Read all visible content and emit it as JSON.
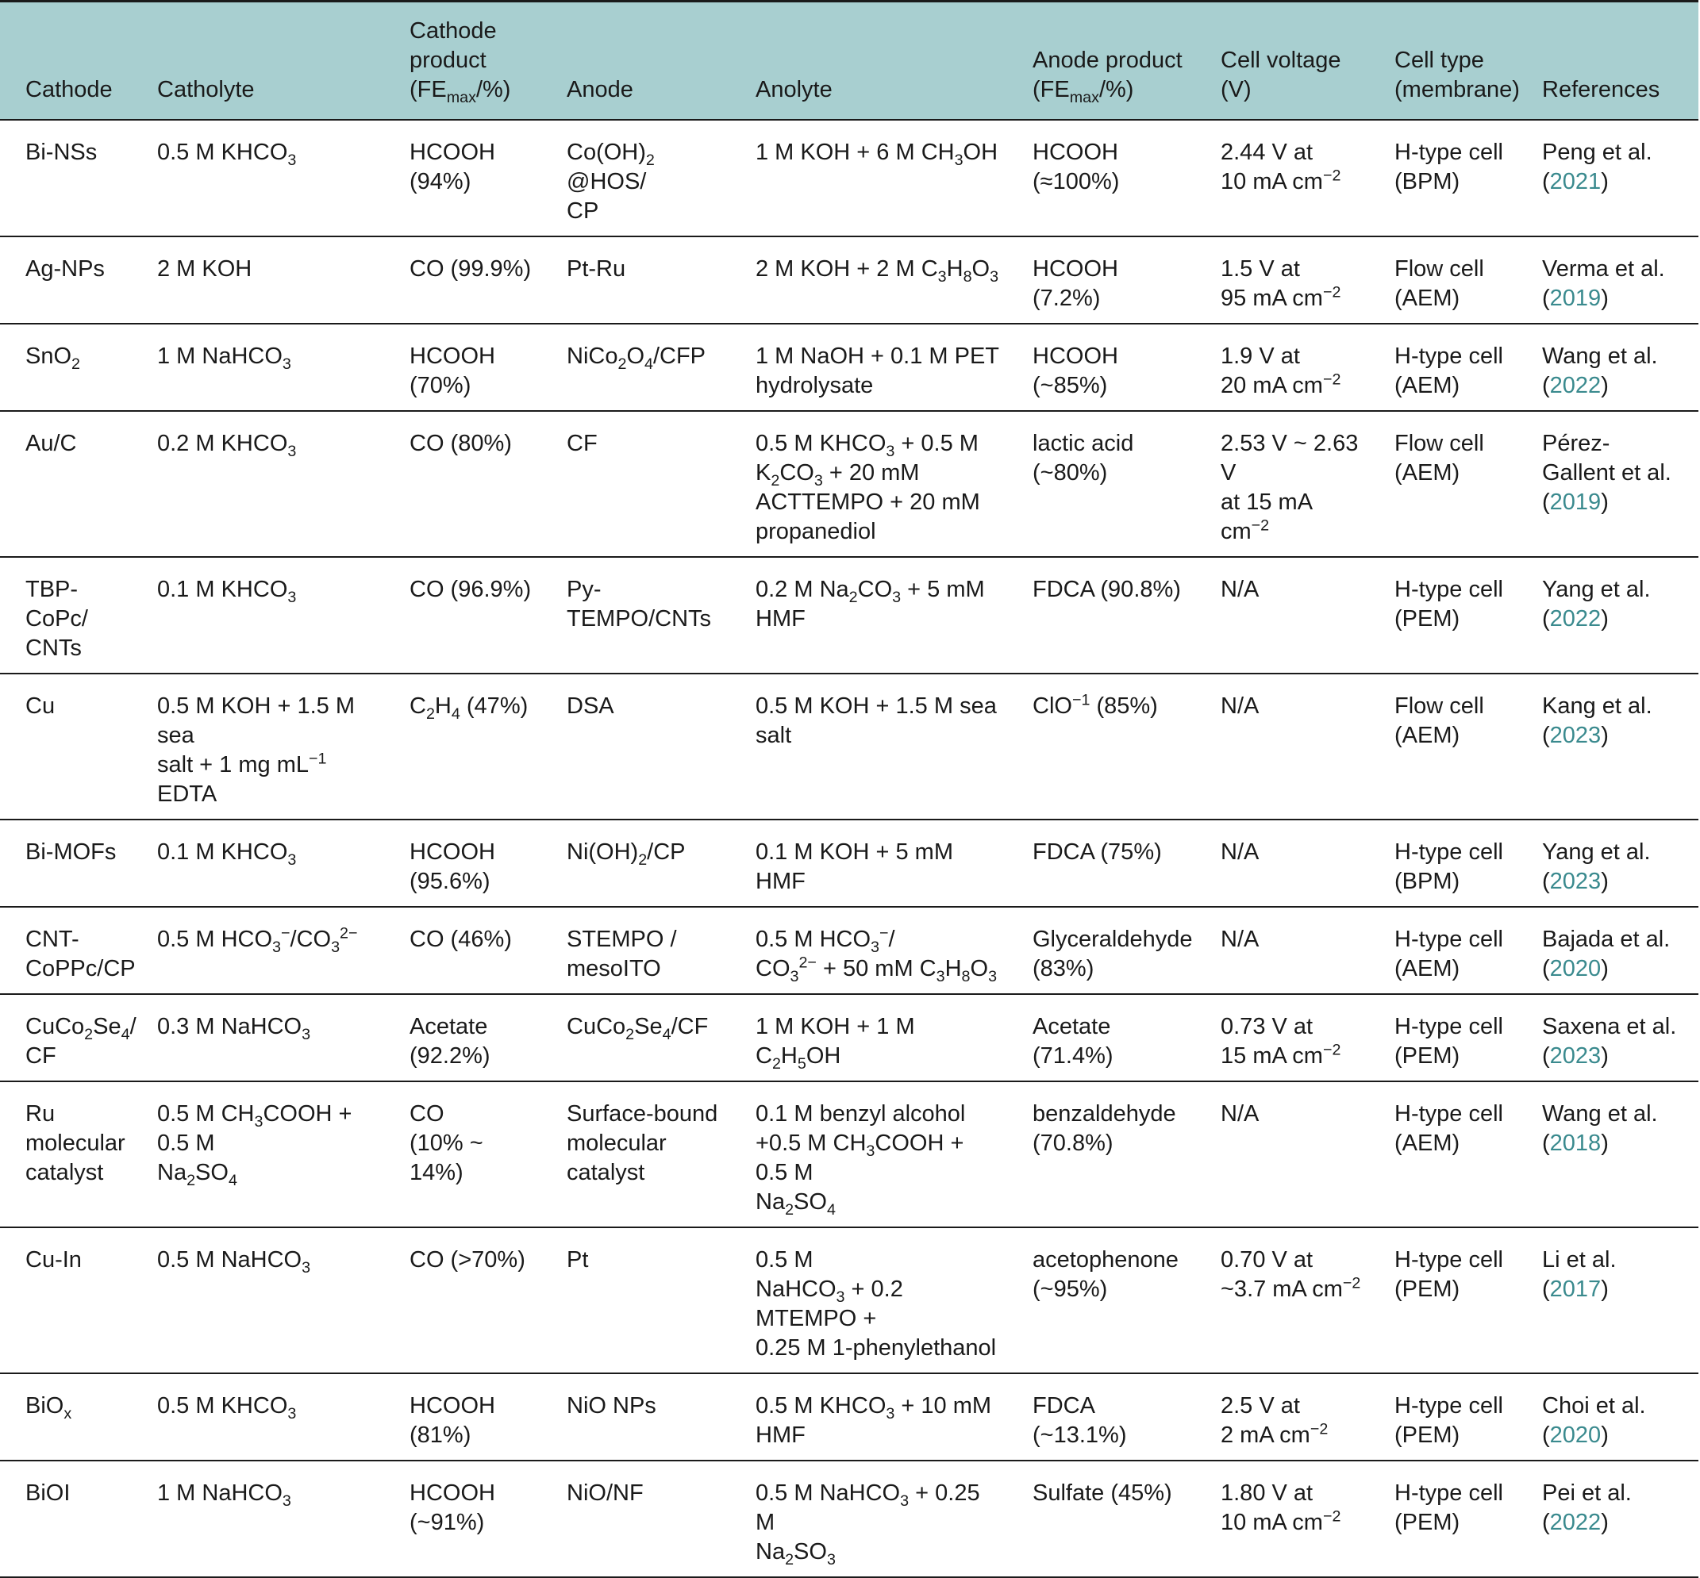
{
  "headers": {
    "cathode": "Cathode",
    "catholyte": "Catholyte",
    "cathode_product": {
      "line1": "Cathode",
      "line2": "product",
      "fe": "FE",
      "max": "max",
      "unit": "/%)"
    },
    "anode": "Anode",
    "anolyte": "Anolyte",
    "anode_product": {
      "line1": "Anode product",
      "fe": "FE",
      "max": "max",
      "unit": "/%)"
    },
    "cell_voltage": "Cell voltage (V)",
    "cell_type": {
      "line1": "Cell type",
      "line2": "(membrane)"
    },
    "references": "References"
  },
  "rows": [
    {
      "cathode": "Bi-NSs",
      "catholyte": "0.5 M KHCO<sub>3</sub>",
      "cathode_product": "HCOOH<br>(94%)",
      "anode": "Co(OH)<sub>2</sub> @HOS/<br>CP",
      "anolyte": "1 M KOH + 6 M CH<sub>3</sub>OH",
      "anode_product": "HCOOH (≈100%)",
      "cell_voltage": "2.44 V at<br>10 mA cm<sup>−2</sup>",
      "cell_type": "H-type cell<br>(BPM)",
      "ref_author": "Peng et al.",
      "ref_year": "2021"
    },
    {
      "cathode": "Ag-NPs",
      "catholyte": "2 M KOH",
      "cathode_product": "CO (99.9%)",
      "anode": "Pt-Ru",
      "anolyte": "2 M KOH + 2 M C<sub>3</sub>H<sub>8</sub>O<sub>3</sub>",
      "anode_product": "HCOOH (7.2%)",
      "cell_voltage": "1.5 V at<br>95 mA cm<sup>−2</sup>",
      "cell_type": "Flow cell<br>(AEM)",
      "ref_author": "Verma et al.",
      "ref_year": "2019"
    },
    {
      "cathode": "SnO<sub>2</sub>",
      "catholyte": "1 M NaHCO<sub>3</sub>",
      "cathode_product": "HCOOH<br>(70%)",
      "anode": "NiCo<sub>2</sub>O<sub>4</sub>/CFP",
      "anolyte": "1 M NaOH + 0.1 M PET<br>hydrolysate",
      "anode_product": "HCOOH (~85%)",
      "cell_voltage": "1.9 V at<br>20 mA cm<sup>−2</sup>",
      "cell_type": "H-type cell<br>(AEM)",
      "ref_author": "Wang et al.",
      "ref_year": "2022"
    },
    {
      "cathode": "Au/C",
      "catholyte": "0.2 M KHCO<sub>3</sub>",
      "cathode_product": "CO (80%)",
      "anode": "CF",
      "anolyte": "0.5 M KHCO<sub>3</sub> + 0.5 M<br>K<sub>2</sub>CO<sub>3</sub> + 20 mM<br>ACTTEMPO + 20 mM<br>propanediol",
      "anode_product": "lactic acid<br>(~80%)",
      "cell_voltage": "2.53 V ~ 2.63 V<br>at 15 mA cm<sup>−2</sup>",
      "cell_type": "Flow cell<br>(AEM)",
      "ref_author": "Pérez-<br>Gallent et al.",
      "ref_year": "2019"
    },
    {
      "cathode": "TBP-CoPc/<br>CNTs",
      "catholyte": "0.1 M KHCO<sub>3</sub>",
      "cathode_product": "CO (96.9%)",
      "anode": "Py-TEMPO/CNTs",
      "anolyte": "0.2 M Na<sub>2</sub>CO<sub>3</sub> + 5 mM HMF",
      "anode_product": "FDCA (90.8%)",
      "cell_voltage": "N/A",
      "cell_type": "H-type cell<br>(PEM)",
      "ref_author": "Yang et al.",
      "ref_year": "2022"
    },
    {
      "cathode": "Cu",
      "catholyte": "0.5 M KOH + 1.5 M sea<br>salt + 1 mg mL<sup>−1</sup> EDTA",
      "cathode_product": "C<sub>2</sub>H<sub>4</sub> (47%)",
      "anode": "DSA",
      "anolyte": "0.5 M KOH + 1.5 M sea salt",
      "anode_product": "ClO<sup>−1</sup> (85%)",
      "cell_voltage": "N/A",
      "cell_type": "Flow cell<br>(AEM)",
      "ref_author": "Kang et al.",
      "ref_year": "2023"
    },
    {
      "cathode": "Bi-MOFs",
      "catholyte": "0.1 M KHCO<sub>3</sub>",
      "cathode_product": "HCOOH<br>(95.6%)",
      "anode": "Ni(OH)<sub>2</sub>/CP",
      "anolyte": "0.1 M KOH + 5 mM HMF",
      "anode_product": "FDCA (75%)",
      "cell_voltage": "N/A",
      "cell_type": "H-type cell<br>(BPM)",
      "ref_author": "Yang et al.",
      "ref_year": "2023"
    },
    {
      "cathode": "CNT-<br>CoPPc/CP",
      "catholyte": "0.5 M HCO<sub>3</sub><sup>−</sup>/CO<sub>3</sub><sup>2−</sup>",
      "cathode_product": "CO (46%)",
      "anode": "STEMPO /<br>mesoITO",
      "anolyte": "0.5 M HCO<sub>3</sub><sup>−</sup>/<br>CO<sub>3</sub><sup>2−</sup> + 50 mM C<sub>3</sub>H<sub>8</sub>O<sub>3</sub>",
      "anode_product": "Glyceraldehyde<br>(83%)",
      "cell_voltage": "N/A",
      "cell_type": "H-type cell<br>(AEM)",
      "ref_author": "Bajada et al.",
      "ref_year": "2020"
    },
    {
      "cathode": "CuCo<sub>2</sub>Se<sub>4</sub>/<br>CF",
      "catholyte": "0.3 M NaHCO<sub>3</sub>",
      "cathode_product": "Acetate<br>(92.2%)",
      "anode": "CuCo<sub>2</sub>Se<sub>4</sub>/CF",
      "anolyte": "1 M KOH + 1 M C<sub>2</sub>H<sub>5</sub>OH",
      "anode_product": "Acetate (71.4%)",
      "cell_voltage": "0.73 V at<br>15 mA cm<sup>−2</sup>",
      "cell_type": "H-type cell<br>(PEM)",
      "ref_author": "Saxena et al.",
      "ref_year": "2023"
    },
    {
      "cathode": "Ru<br>molecular<br>catalyst",
      "catholyte": "0.5 M CH<sub>3</sub>COOH + 0.5 M<br>Na<sub>2</sub>SO<sub>4</sub>",
      "cathode_product": "CO<br>(10% ~ 14%)",
      "anode": "Surface-bound<br>molecular<br>catalyst",
      "anolyte": "0.1 M benzyl alcohol<br>+0.5 M CH<sub>3</sub>COOH + 0.5 M<br>Na<sub>2</sub>SO<sub>4</sub>",
      "anode_product": "benzaldehyde<br>(70.8%)",
      "cell_voltage": "N/A",
      "cell_type": "H-type cell<br>(AEM)",
      "ref_author": "Wang et al.",
      "ref_year": "2018"
    },
    {
      "cathode": "Cu-In",
      "catholyte": "0.5 M NaHCO<sub>3</sub>",
      "cathode_product": "CO (>70%)",
      "anode": "Pt",
      "anolyte": "0.5 M<br>NaHCO<sub>3</sub> + 0.2 MTEMPO +<br>0.25 M 1-phenylethanol",
      "anode_product": "acetophenone<br>(~95%)",
      "cell_voltage": "0.70 V at<br>~3.7 mA cm<sup>−2</sup>",
      "cell_type": "H-type cell<br>(PEM)",
      "ref_author": "Li et al.",
      "ref_year": "2017"
    },
    {
      "cathode": "BiO<sub>x</sub>",
      "catholyte": "0.5 M KHCO<sub>3</sub>",
      "cathode_product": "HCOOH<br>(81%)",
      "anode": "NiO NPs",
      "anolyte": "0.5 M KHCO<sub>3</sub> + 10 mM<br>HMF",
      "anode_product": "FDCA (~13.1%)",
      "cell_voltage": "2.5 V at<br>2 mA cm<sup>−2</sup>",
      "cell_type": "H-type cell<br>(PEM)",
      "ref_author": "Choi et al.",
      "ref_year": "2020"
    },
    {
      "cathode": "BiOI",
      "catholyte": "1 M NaHCO<sub>3</sub>",
      "cathode_product": "HCOOH<br>(~91%)",
      "anode": "NiO/NF",
      "anolyte": "0.5 M NaHCO<sub>3</sub> + 0.25 M<br>Na<sub>2</sub>SO<sub>3</sub>",
      "anode_product": "Sulfate (45%)",
      "cell_voltage": "1.80 V at<br>10 mA cm<sup>−2</sup>",
      "cell_type": "H-type cell<br>(PEM)",
      "ref_author": "Pei et al.",
      "ref_year": "2022"
    }
  ]
}
